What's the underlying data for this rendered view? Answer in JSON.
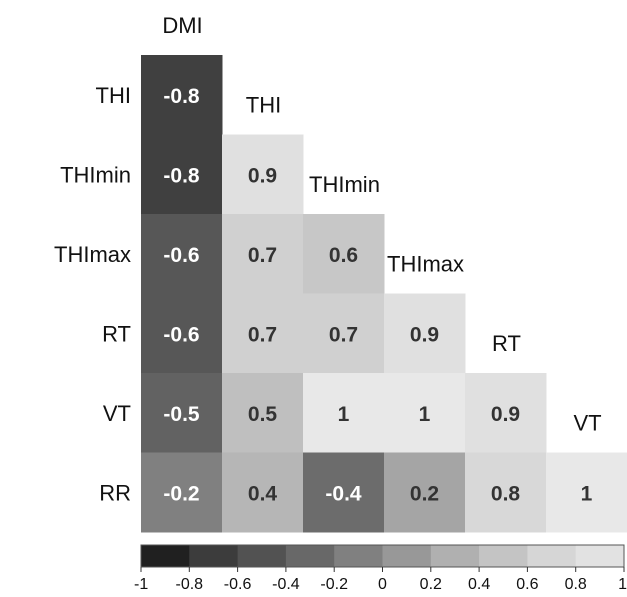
{
  "chart_data": {
    "type": "heatmap",
    "layout": "lower-triangle correlation matrix, column labels on the diagonal",
    "rows": [
      "THI",
      "THImin",
      "THImax",
      "RT",
      "VT",
      "RR"
    ],
    "columns": [
      "DMI",
      "THI",
      "THImin",
      "THImax",
      "RT",
      "VT"
    ],
    "values": [
      [
        -0.8
      ],
      [
        -0.8,
        0.9
      ],
      [
        -0.6,
        0.7,
        0.6
      ],
      [
        -0.6,
        0.7,
        0.7,
        0.9
      ],
      [
        -0.5,
        0.5,
        1,
        1,
        0.9
      ],
      [
        -0.2,
        0.4,
        -0.4,
        0.2,
        0.8,
        1
      ]
    ],
    "value_labels": [
      [
        "-0.8"
      ],
      [
        "-0.8",
        "0.9"
      ],
      [
        "-0.6",
        "0.7",
        "0.6"
      ],
      [
        "-0.6",
        "0.7",
        "0.7",
        "0.9"
      ],
      [
        "-0.5",
        "0.5",
        "1",
        "1",
        "0.9"
      ],
      [
        "-0.2",
        "0.4",
        "-0.4",
        "0.2",
        "0.8",
        "1"
      ]
    ],
    "colorbar": {
      "range": [
        -1,
        1
      ],
      "ticks": [
        "-1",
        "-0.8",
        "-0.6",
        "-0.4",
        "-0.2",
        "0",
        "0.2",
        "0.4",
        "0.6",
        "0.8",
        "1"
      ],
      "colors": [
        "#202020",
        "#3c3c3c",
        "#525252",
        "#686868",
        "#808080",
        "#989898",
        "#b0b0b0",
        "#c4c4c4",
        "#d6d6d6",
        "#e2e2e2"
      ]
    },
    "legend": "bottom colorbar",
    "grid": false
  }
}
